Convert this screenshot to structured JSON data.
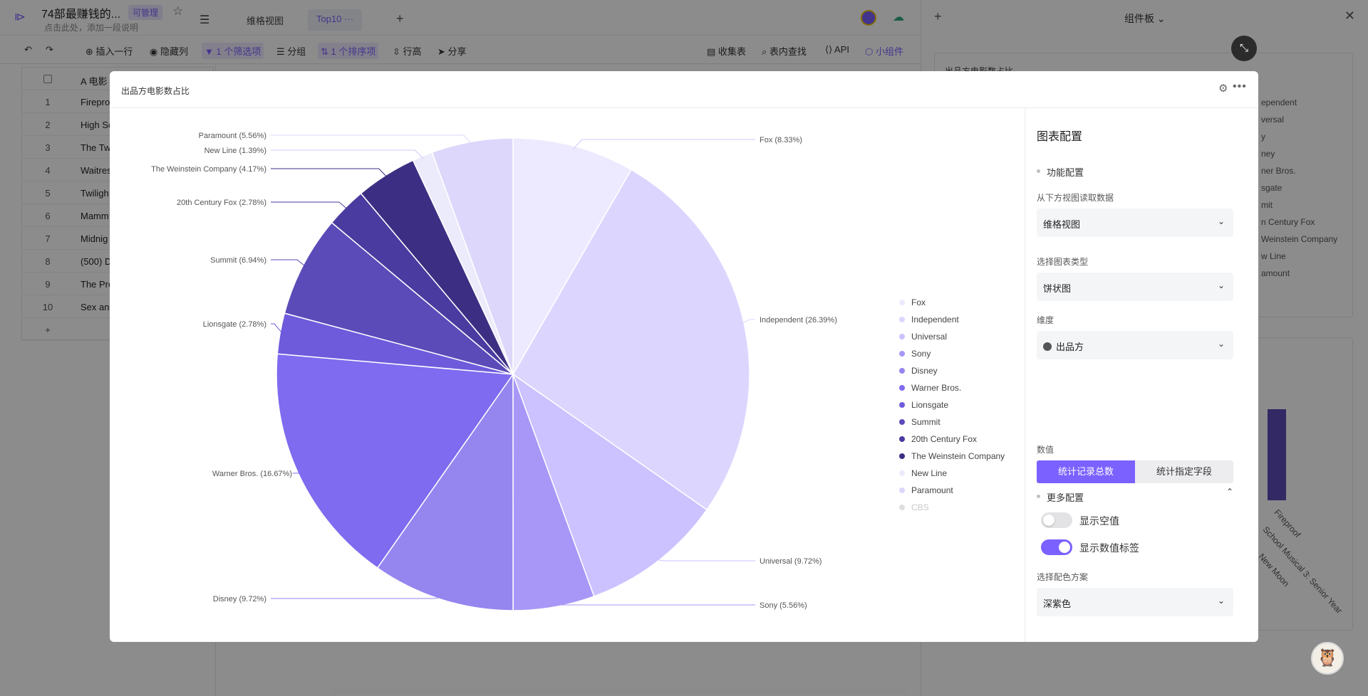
{
  "app": {
    "doc_title": "74部最赚钱的...",
    "manage_badge": "可管理",
    "description": "点击此处，添加一段说明",
    "tabs": [
      {
        "label": "维格视图"
      },
      {
        "label": "Top10"
      }
    ]
  },
  "toolbar": {
    "insert_row": "插入一行",
    "hide_columns": "隐藏列",
    "filter": "1 个筛选项",
    "group": "分组",
    "sort": "1 个排序项",
    "row_height": "行高",
    "share": "分享",
    "form": "收集表",
    "find": "表内查找",
    "api": "API",
    "widgets": "小组件"
  },
  "grid": {
    "header_field": "电影",
    "rows": [
      {
        "num": "1",
        "title": "Firepro"
      },
      {
        "num": "2",
        "title": "High Sc"
      },
      {
        "num": "3",
        "title": "The Tw"
      },
      {
        "num": "4",
        "title": "Waitres"
      },
      {
        "num": "5",
        "title": "Twiligh"
      },
      {
        "num": "6",
        "title": "Mamm"
      },
      {
        "num": "7",
        "title": "Midnig"
      },
      {
        "num": "8",
        "title": "(500) D"
      },
      {
        "num": "9",
        "title": "The Pro"
      },
      {
        "num": "10",
        "title": "Sex and"
      }
    ],
    "add_symbol": "+"
  },
  "widget_panel": {
    "title": "组件板",
    "card1_title": "出品方电影数占比",
    "card1_legend": [
      "ependent",
      "versal",
      "y",
      "ney",
      "ner Bros.",
      "sgate",
      "mit",
      "n Century Fox",
      "Weinstein Company",
      "w Line",
      "amount"
    ],
    "card2_axis_labels": [
      "Fireproof",
      "School Musical 3: Senior Year",
      "New Moon"
    ]
  },
  "modal": {
    "title": "出品方电影数占比",
    "config": {
      "heading": "图表配置",
      "function_section": "功能配置",
      "source_label": "从下方视图读取数据",
      "source_value": "维格视图",
      "chart_type_label": "选择图表类型",
      "chart_type_value": "饼状图",
      "dimension_label": "维度",
      "dimension_value": "出品方",
      "metric_label": "数值",
      "metric_count": "统计记录总数",
      "metric_field": "统计指定字段",
      "more_section": "更多配置",
      "show_null_label": "显示空值",
      "show_null": false,
      "show_value_label": "显示数值标签",
      "show_value": true,
      "color_label": "选择配色方案",
      "color_value": "深紫色"
    }
  },
  "chart_data": {
    "type": "pie",
    "title": "",
    "categories": [
      "Fox",
      "Independent",
      "Universal",
      "Sony",
      "Disney",
      "Warner Bros.",
      "Lionsgate",
      "Summit",
      "20th Century Fox",
      "The Weinstein Company",
      "New Line",
      "Paramount",
      "CBS"
    ],
    "values": [
      8.33,
      26.39,
      9.72,
      5.56,
      9.72,
      16.67,
      2.78,
      6.94,
      2.78,
      4.17,
      1.39,
      5.56,
      0
    ],
    "labels": [
      "Fox (8.33%)",
      "Independent (26.39%)",
      "Universal (9.72%)",
      "Sony (5.56%)",
      "Disney (9.72%)",
      "Warner Bros. (16.67%)",
      "Lionsgate (2.78%)",
      "Summit (6.94%)",
      "20th Century Fox (2.78%)",
      "The Weinstein Company (4.17%)",
      "New Line (1.39%)",
      "Paramount (5.56%)"
    ],
    "colors": [
      "#edeaff",
      "#dcd6ff",
      "#cbc2ff",
      "#a897f7",
      "#9485ef",
      "#7e6bef",
      "#6d5bdc",
      "#5b4bb8",
      "#4a3ba0",
      "#3c2f83",
      "#ebebfb",
      "#ddd7fb",
      "#dedede"
    ],
    "legend_position": "right"
  },
  "colors": {
    "accent": "#7b61ff",
    "overlay": "rgba(0,0,0,0.45)"
  },
  "icons": {
    "logo": "sidebar-toggle-icon",
    "star": "star-icon",
    "settings": "gear-icon",
    "more": "more-icon",
    "collapse": "minimize-icon"
  }
}
